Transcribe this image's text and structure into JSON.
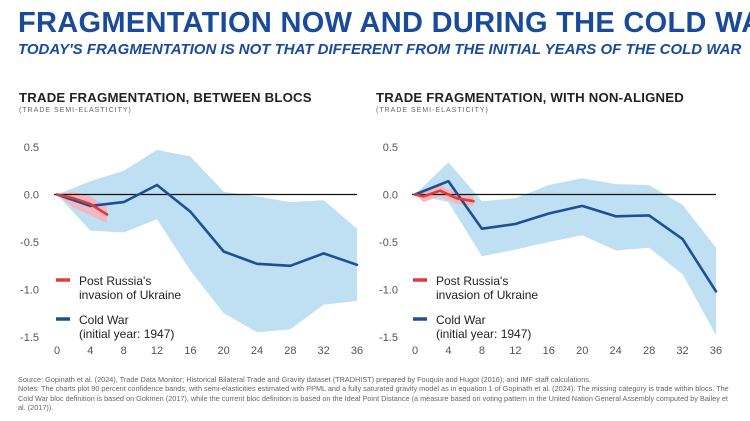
{
  "title": "FRAGMENTATION NOW AND DURING THE COLD WAR",
  "subtitle": "TODAY'S FRAGMENTATION IS NOT THAT DIFFERENT FROM THE INITIAL YEARS OF THE COLD WAR",
  "colors": {
    "title": "#1a4a9a",
    "cold_war": "#1d4f96",
    "cold_war_band": "#bfe0f2",
    "russia": "#e03a3a",
    "russia_band": "#f3b8bf"
  },
  "source": "Source: Gopinath et al. (2024), Trade Data Monitor; Historical Bilateral Trade and Gravity dataset (TRADHIST) prepared by Fouquin and Hugot (2016); and IMF staff calculations.",
  "notes": "Notes: The charts plot 90 percent confidence bands, with semi-elasticities estimated with PPML and a fully saturated gravity model as in equation 1 of Gopinath et al. (2024). The missing category is trade within blocs. The Cold War bloc definition is based on Gokmen (2017), while the current bloc definition is based on the Ideal Point Distance (a measure based on voting pattern in the United Nation General Assembly computed by Bailey et al. (2017)).",
  "chart_data": [
    {
      "type": "line",
      "title": "TRADE FRAGMENTATION, BETWEEN BLOCS",
      "subtitle": "(TRADE SEMI-ELASTICITY)",
      "xlim": [
        0,
        36
      ],
      "ylim": [
        -1.5,
        0.5
      ],
      "xticks": [
        "0",
        "4",
        "8",
        "12",
        "16",
        "20",
        "24",
        "28",
        "32",
        "36"
      ],
      "yticks": [
        "0.5",
        "0.0",
        "-0.5",
        "-1.0",
        "-1.5"
      ],
      "series": [
        {
          "name": "Cold War",
          "legend": [
            "Cold War",
            "(initial year: 1947)"
          ],
          "x": [
            0,
            4,
            8,
            12,
            16,
            20,
            24,
            28,
            32,
            36
          ],
          "y": [
            0.0,
            -0.12,
            -0.08,
            0.1,
            -0.18,
            -0.6,
            -0.73,
            -0.75,
            -0.62,
            -0.74
          ],
          "lower": [
            0.0,
            -0.38,
            -0.4,
            -0.26,
            -0.8,
            -1.25,
            -1.45,
            -1.42,
            -1.16,
            -1.12
          ],
          "upper": [
            0.0,
            0.14,
            0.25,
            0.47,
            0.4,
            0.03,
            -0.02,
            -0.08,
            -0.06,
            -0.36
          ]
        },
        {
          "name": "Post Russia's invasion of Ukraine",
          "legend": [
            "Post Russia's",
            "invasion of Ukraine"
          ],
          "x": [
            0,
            2,
            4,
            6
          ],
          "y": [
            0.0,
            -0.04,
            -0.1,
            -0.21
          ],
          "lower": [
            0.0,
            -0.14,
            -0.22,
            -0.3
          ],
          "upper": [
            0.0,
            0.03,
            -0.02,
            -0.13
          ]
        }
      ]
    },
    {
      "type": "line",
      "title": "TRADE FRAGMENTATION, WITH NON-ALIGNED",
      "subtitle": "(TRADE SEMI-ELASTICITY)",
      "xlim": [
        0,
        36
      ],
      "ylim": [
        -1.5,
        0.5
      ],
      "xticks": [
        "0",
        "4",
        "8",
        "12",
        "16",
        "20",
        "24",
        "28",
        "32",
        "36"
      ],
      "yticks": [
        "0.5",
        "0.0",
        "-0.5",
        "-1.0",
        "-1.5"
      ],
      "series": [
        {
          "name": "Cold War",
          "legend": [
            "Cold War",
            "(initial year: 1947)"
          ],
          "x": [
            0,
            4,
            8,
            12,
            16,
            20,
            24,
            28,
            32,
            36
          ],
          "y": [
            0.0,
            0.14,
            -0.36,
            -0.31,
            -0.2,
            -0.12,
            -0.23,
            -0.22,
            -0.47,
            -1.02
          ],
          "lower": [
            0.0,
            -0.08,
            -0.65,
            -0.58,
            -0.5,
            -0.43,
            -0.59,
            -0.56,
            -0.84,
            -1.48
          ],
          "upper": [
            0.0,
            0.34,
            -0.07,
            -0.04,
            0.1,
            0.17,
            0.11,
            0.1,
            -0.11,
            -0.56
          ]
        },
        {
          "name": "Post Russia's invasion of Ukraine",
          "legend": [
            "Post Russia's",
            "invasion of Ukraine"
          ],
          "x": [
            0,
            1,
            3,
            5,
            7
          ],
          "y": [
            0.0,
            -0.02,
            0.04,
            -0.04,
            -0.07
          ],
          "lower": [
            0.0,
            -0.08,
            -0.02,
            -0.1,
            -0.12
          ],
          "upper": [
            0.0,
            0.04,
            0.1,
            0.02,
            -0.02
          ]
        }
      ]
    }
  ]
}
